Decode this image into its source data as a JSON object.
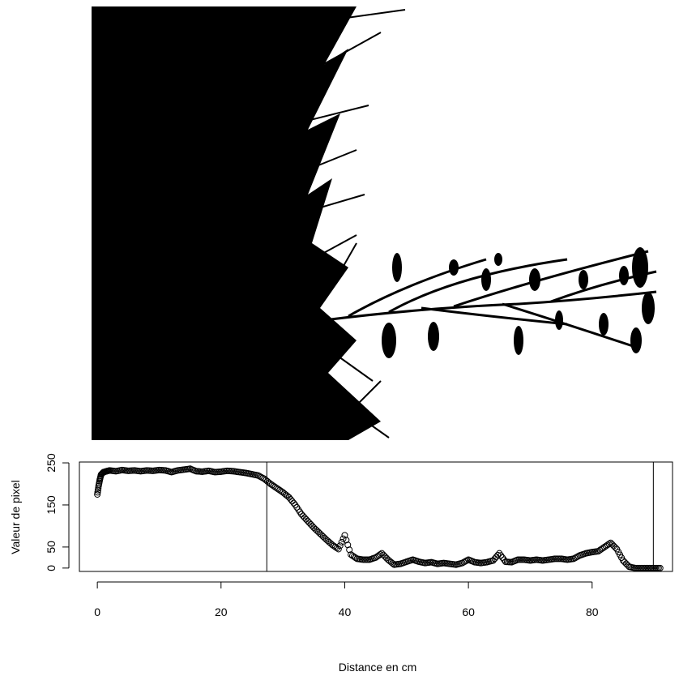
{
  "photo": {
    "description_icon": "plant-silhouette-icon",
    "foreground": "#000000",
    "background": "#ffffff"
  },
  "chart_data": {
    "type": "scatter",
    "xlabel": "Distance en cm",
    "ylabel": "Valeur de pixel",
    "xlim": [
      -2.9,
      93
    ],
    "ylim": [
      -8,
      252
    ],
    "x_ticks": [
      0,
      20,
      40,
      60,
      80
    ],
    "y_ticks": [
      0,
      50,
      150,
      250
    ],
    "grid": false,
    "vertical_lines": [
      27.4,
      89.9
    ],
    "marker": "open-circle",
    "series": [
      {
        "x": [
          0,
          0.2,
          0.4,
          0.6,
          1,
          1.5,
          2,
          3,
          4,
          5,
          6,
          7,
          8,
          9,
          10,
          11,
          12,
          13,
          14,
          15,
          16,
          17,
          18,
          19,
          20,
          21,
          22,
          23,
          24,
          25,
          26,
          27,
          28,
          29,
          30,
          31,
          32,
          33,
          34,
          35,
          36,
          37,
          38,
          39,
          40,
          41,
          42,
          43,
          44,
          45,
          46,
          47,
          48,
          49,
          50,
          51,
          52,
          53,
          54,
          55,
          56,
          57,
          58,
          59,
          60,
          61,
          62,
          63,
          64,
          65,
          66,
          67,
          68,
          69,
          70,
          71,
          72,
          73,
          74,
          75,
          76,
          77,
          78,
          79,
          80,
          81,
          82,
          83,
          84,
          85,
          86,
          87,
          88,
          89,
          90,
          91
        ],
        "y": [
          175,
          195,
          210,
          222,
          228,
          230,
          232,
          230,
          233,
          231,
          232,
          230,
          232,
          231,
          233,
          232,
          228,
          232,
          234,
          236,
          230,
          229,
          231,
          228,
          229,
          231,
          230,
          228,
          226,
          223,
          220,
          212,
          200,
          190,
          180,
          168,
          150,
          128,
          112,
          96,
          82,
          68,
          55,
          45,
          78,
          32,
          22,
          20,
          20,
          25,
          35,
          20,
          8,
          10,
          15,
          20,
          15,
          12,
          14,
          10,
          12,
          10,
          8,
          12,
          20,
          14,
          12,
          14,
          18,
          35,
          15,
          14,
          20,
          20,
          18,
          20,
          18,
          20,
          22,
          22,
          20,
          22,
          30,
          35,
          38,
          40,
          50,
          60,
          45,
          18,
          3,
          0,
          0,
          0,
          0,
          0
        ]
      }
    ]
  }
}
